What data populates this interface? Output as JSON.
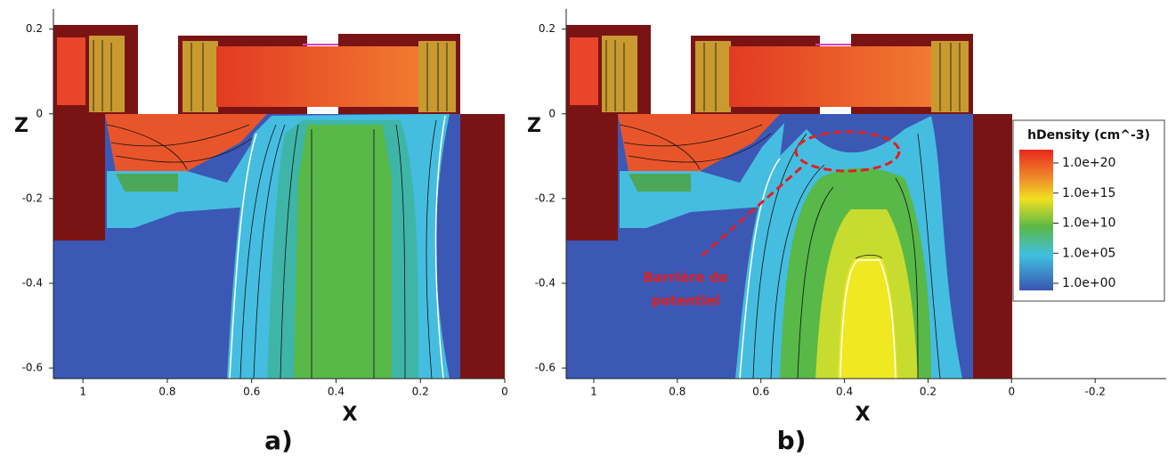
{
  "chart_data": [
    {
      "type": "contour",
      "panel_label": "a)",
      "xlabel": "X",
      "ylabel": "Z",
      "xlim": [
        1.07,
        0
      ],
      "xticks": [
        1,
        0.8,
        0.6,
        0.4,
        0.2,
        0
      ],
      "ylim": [
        -0.625,
        0.235
      ],
      "yticks": [
        0.2,
        0,
        -0.2,
        -0.4,
        -0.6
      ]
    },
    {
      "type": "contour",
      "panel_label": "b)",
      "xlabel": "X",
      "ylabel": "Z",
      "xlim": [
        1.066,
        -0.37
      ],
      "xticks": [
        1,
        0.8,
        0.6,
        0.4,
        0.2,
        0,
        -0.2
      ],
      "ylim": [
        -0.625,
        0.235
      ],
      "yticks": [
        0.2,
        0,
        -0.2,
        -0.4,
        -0.6
      ],
      "annotation": [
        "Barrière de",
        "potentiel"
      ],
      "colorbar": {
        "title": "hDensity (cm^-3)",
        "scale": "log",
        "lim": [
          1,
          1e+20
        ],
        "ticks": [
          {
            "value": 1e+20,
            "label": "1.0e+20"
          },
          {
            "value": 1000000000000000.0,
            "label": "1.0e+15"
          },
          {
            "value": 10000000000.0,
            "label": "1.0e+10"
          },
          {
            "value": 100000.0,
            "label": "1.0e+05"
          },
          {
            "value": 1,
            "label": "1.0e+00"
          }
        ]
      }
    }
  ]
}
